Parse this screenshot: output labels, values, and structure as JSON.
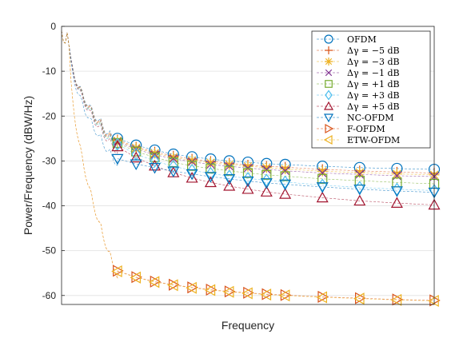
{
  "chart_data": {
    "type": "line",
    "title": "",
    "xlabel": "Frequency",
    "ylabel": "Power/Frequency (dBW/Hz)",
    "ylim": [
      -62,
      0
    ],
    "yticks": [
      0,
      -10,
      -20,
      -30,
      -40,
      -50,
      -60
    ],
    "ytick_labels": [
      "0",
      "-10",
      "-20",
      "-30",
      "-40",
      "-50",
      "-60"
    ],
    "xlim": [
      0,
      1
    ],
    "grid": true,
    "legend_position": "top-right",
    "series": [
      {
        "name": "OFDM",
        "marker": "circle",
        "color": "#0072BD",
        "x": [
          0.15,
          0.2,
          0.25,
          0.3,
          0.35,
          0.4,
          0.45,
          0.5,
          0.55,
          0.6,
          0.7,
          0.8,
          0.9,
          1.0
        ],
        "y": [
          -25,
          -26.5,
          -27.6,
          -28.5,
          -29.1,
          -29.6,
          -30.0,
          -30.3,
          -30.6,
          -30.8,
          -31.2,
          -31.5,
          -31.7,
          -31.9
        ]
      },
      {
        "name": "Δγ = −5 dB",
        "marker": "plus",
        "color": "#D95319",
        "x": [
          0.15,
          0.2,
          0.25,
          0.3,
          0.35,
          0.4,
          0.45,
          0.5,
          0.55,
          0.6,
          0.7,
          0.8,
          0.9,
          1.0
        ],
        "y": [
          -25.3,
          -26.9,
          -28.0,
          -28.9,
          -29.6,
          -30.1,
          -30.5,
          -30.9,
          -31.2,
          -31.4,
          -31.9,
          -32.2,
          -32.5,
          -32.7
        ]
      },
      {
        "name": "Δγ = −3 dB",
        "marker": "asterisk",
        "color": "#EDB120",
        "x": [
          0.15,
          0.2,
          0.25,
          0.3,
          0.35,
          0.4,
          0.45,
          0.5,
          0.55,
          0.6,
          0.7,
          0.8,
          0.9,
          1.0
        ],
        "y": [
          -25.5,
          -27.1,
          -28.3,
          -29.2,
          -29.9,
          -30.4,
          -30.8,
          -31.2,
          -31.5,
          -31.8,
          -32.3,
          -32.6,
          -32.9,
          -33.1
        ]
      },
      {
        "name": "Δγ = −1 dB",
        "marker": "x",
        "color": "#7E2F8E",
        "x": [
          0.15,
          0.2,
          0.25,
          0.3,
          0.35,
          0.4,
          0.45,
          0.5,
          0.55,
          0.6,
          0.7,
          0.8,
          0.9,
          1.0
        ],
        "y": [
          -25.7,
          -27.4,
          -28.6,
          -29.5,
          -30.2,
          -30.8,
          -31.2,
          -31.6,
          -31.9,
          -32.2,
          -32.7,
          -33.0,
          -33.3,
          -33.5
        ]
      },
      {
        "name": "Δγ = +1 dB",
        "marker": "square",
        "color": "#77AC30",
        "x": [
          0.15,
          0.2,
          0.25,
          0.3,
          0.35,
          0.4,
          0.45,
          0.5,
          0.55,
          0.6,
          0.7,
          0.8,
          0.9,
          1.0
        ],
        "y": [
          -26.0,
          -27.9,
          -29.2,
          -30.3,
          -31.1,
          -31.7,
          -32.2,
          -32.7,
          -33.1,
          -33.4,
          -34.0,
          -34.4,
          -34.8,
          -35.1
        ]
      },
      {
        "name": "Δγ = +3 dB",
        "marker": "diamond",
        "color": "#4DBEEE",
        "x": [
          0.15,
          0.2,
          0.25,
          0.3,
          0.35,
          0.4,
          0.45,
          0.5,
          0.55,
          0.6,
          0.7,
          0.8,
          0.9,
          1.0
        ],
        "y": [
          -26.3,
          -28.5,
          -30.0,
          -31.2,
          -32.1,
          -32.8,
          -33.4,
          -33.9,
          -34.3,
          -34.7,
          -35.4,
          -35.9,
          -36.3,
          -36.6
        ]
      },
      {
        "name": "Δγ = +5 dB",
        "marker": "triangle-up",
        "color": "#A2142F",
        "x": [
          0.15,
          0.2,
          0.25,
          0.3,
          0.35,
          0.4,
          0.45,
          0.5,
          0.55,
          0.6,
          0.7,
          0.8,
          0.9,
          1.0
        ],
        "y": [
          -26.8,
          -29.3,
          -31.1,
          -32.6,
          -33.8,
          -34.8,
          -35.6,
          -36.3,
          -36.9,
          -37.4,
          -38.2,
          -38.9,
          -39.4,
          -39.8
        ]
      },
      {
        "name": "NC-OFDM",
        "marker": "triangle-down",
        "color": "#0072BD",
        "x": [
          0.15,
          0.2,
          0.25,
          0.3,
          0.35,
          0.4,
          0.45,
          0.5,
          0.55,
          0.6,
          0.7,
          0.8,
          0.9,
          1.0
        ],
        "y": [
          -29.5,
          -30.7,
          -31.5,
          -32.3,
          -32.9,
          -33.5,
          -34.0,
          -34.5,
          -34.9,
          -35.2,
          -35.8,
          -36.3,
          -36.7,
          -37.0
        ]
      },
      {
        "name": "F-OFDM",
        "marker": "triangle-right",
        "color": "#D95319",
        "x": [
          0.15,
          0.2,
          0.25,
          0.3,
          0.35,
          0.4,
          0.45,
          0.5,
          0.55,
          0.6,
          0.7,
          0.8,
          0.9,
          1.0
        ],
        "y": [
          -54.5,
          -55.9,
          -56.9,
          -57.6,
          -58.2,
          -58.7,
          -59.1,
          -59.4,
          -59.7,
          -59.9,
          -60.3,
          -60.6,
          -60.9,
          -61.1
        ]
      },
      {
        "name": "ETW-OFDM",
        "marker": "triangle-left",
        "color": "#EDB120",
        "x": [
          0.15,
          0.2,
          0.25,
          0.3,
          0.35,
          0.4,
          0.45,
          0.5,
          0.55,
          0.6,
          0.7,
          0.8,
          0.9,
          1.0
        ],
        "y": [
          -54.6,
          -56.0,
          -57.0,
          -57.7,
          -58.3,
          -58.8,
          -59.2,
          -59.5,
          -59.8,
          -60.0,
          -60.4,
          -60.7,
          -61.0,
          -61.2
        ]
      }
    ],
    "legend_labels": [
      "OFDM",
      "Δγ = −5 dB",
      "Δγ = −3 dB",
      "Δγ = −1 dB",
      "Δγ = +1 dB",
      "Δγ = +3 dB",
      "Δγ = +5 dB",
      "NC-OFDM",
      "F-OFDM",
      "ETW-OFDM"
    ]
  }
}
